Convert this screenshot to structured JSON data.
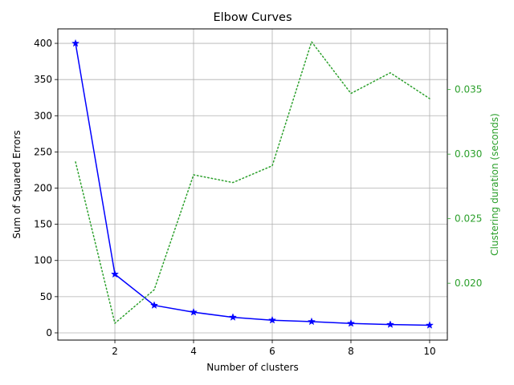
{
  "chart_data": {
    "type": "line",
    "title": "Elbow Curves",
    "xlabel": "Number of clusters",
    "ylabel": "Sum of Squared Errors",
    "ylabel_right": "Clustering duration (seconds)",
    "x": [
      1,
      2,
      3,
      4,
      5,
      6,
      7,
      8,
      9,
      10
    ],
    "xlim": [
      0.55,
      10.45
    ],
    "ylim": [
      -10,
      420
    ],
    "ylim_right": [
      0.0156,
      0.0397
    ],
    "x_ticks": [
      2,
      4,
      6,
      8,
      10
    ],
    "y_ticks": [
      0,
      50,
      100,
      150,
      200,
      250,
      300,
      350,
      400
    ],
    "y_ticks_right": [
      0.02,
      0.025,
      0.03,
      0.035
    ],
    "y_tick_labels_right": [
      "0.020",
      "0.025",
      "0.030",
      "0.035"
    ],
    "grid": true,
    "series": [
      {
        "axis": "left",
        "color": "#0000ff",
        "line_style": "solid",
        "marker": "star",
        "values": [
          400,
          81,
          38,
          28.5,
          21.5,
          17.5,
          15.5,
          13,
          11.5,
          10.5
        ]
      },
      {
        "axis": "right",
        "color": "#2ca02c",
        "line_style": "dotted",
        "marker": "none",
        "values": [
          0.0294,
          0.0169,
          0.0195,
          0.0284,
          0.0278,
          0.0291,
          0.0387,
          0.0347,
          0.0363,
          0.0343
        ]
      }
    ],
    "colors": {
      "right_axis": "#2ca02c",
      "grid": "#b0b0b0",
      "spine": "#000000"
    }
  }
}
